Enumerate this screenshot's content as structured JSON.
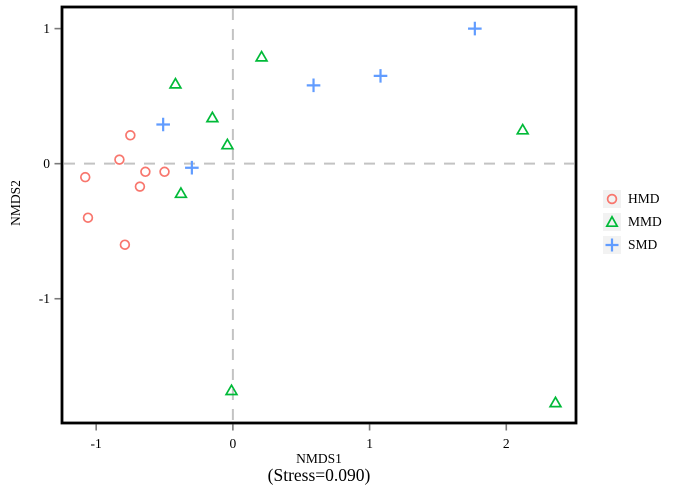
{
  "chart_data": {
    "type": "scatter",
    "title": "",
    "xlabel": "NMDS1",
    "ylabel": "NMDS2",
    "caption": "(Stress=0.090)",
    "xlim": [
      -1.25,
      2.51
    ],
    "ylim": [
      -1.92,
      1.16
    ],
    "x_ticks": [
      -1,
      0,
      1,
      2
    ],
    "y_ticks": [
      -1,
      0,
      1
    ],
    "reference_lines": {
      "x": 0,
      "y": 0,
      "style": "dashed",
      "color": "#c3c3c3"
    },
    "grid": "off",
    "legend_position": "right-outside",
    "legend_key_background": "#f2f2f2",
    "series": [
      {
        "name": "HMD",
        "marker": "open-circle",
        "color": "#F8766D",
        "points": [
          [
            -1.08,
            -0.1
          ],
          [
            -1.06,
            -0.4
          ],
          [
            -0.83,
            0.03
          ],
          [
            -0.79,
            -0.6
          ],
          [
            -0.75,
            0.21
          ],
          [
            -0.68,
            -0.17
          ],
          [
            -0.64,
            -0.06
          ],
          [
            -0.5,
            -0.06
          ]
        ]
      },
      {
        "name": "MMD",
        "marker": "open-triangle",
        "color": "#00BA38",
        "points": [
          [
            -0.42,
            0.59
          ],
          [
            -0.38,
            -0.22
          ],
          [
            -0.15,
            0.34
          ],
          [
            -0.04,
            0.14
          ],
          [
            0.21,
            0.79
          ],
          [
            2.12,
            0.25
          ],
          [
            -0.01,
            -1.68
          ],
          [
            2.36,
            -1.77
          ]
        ]
      },
      {
        "name": "SMD",
        "marker": "plus",
        "color": "#619CFF",
        "points": [
          [
            -0.51,
            0.29
          ],
          [
            -0.3,
            -0.03
          ],
          [
            0.59,
            0.58
          ],
          [
            1.08,
            0.65
          ],
          [
            1.77,
            1.0
          ]
        ]
      }
    ]
  }
}
